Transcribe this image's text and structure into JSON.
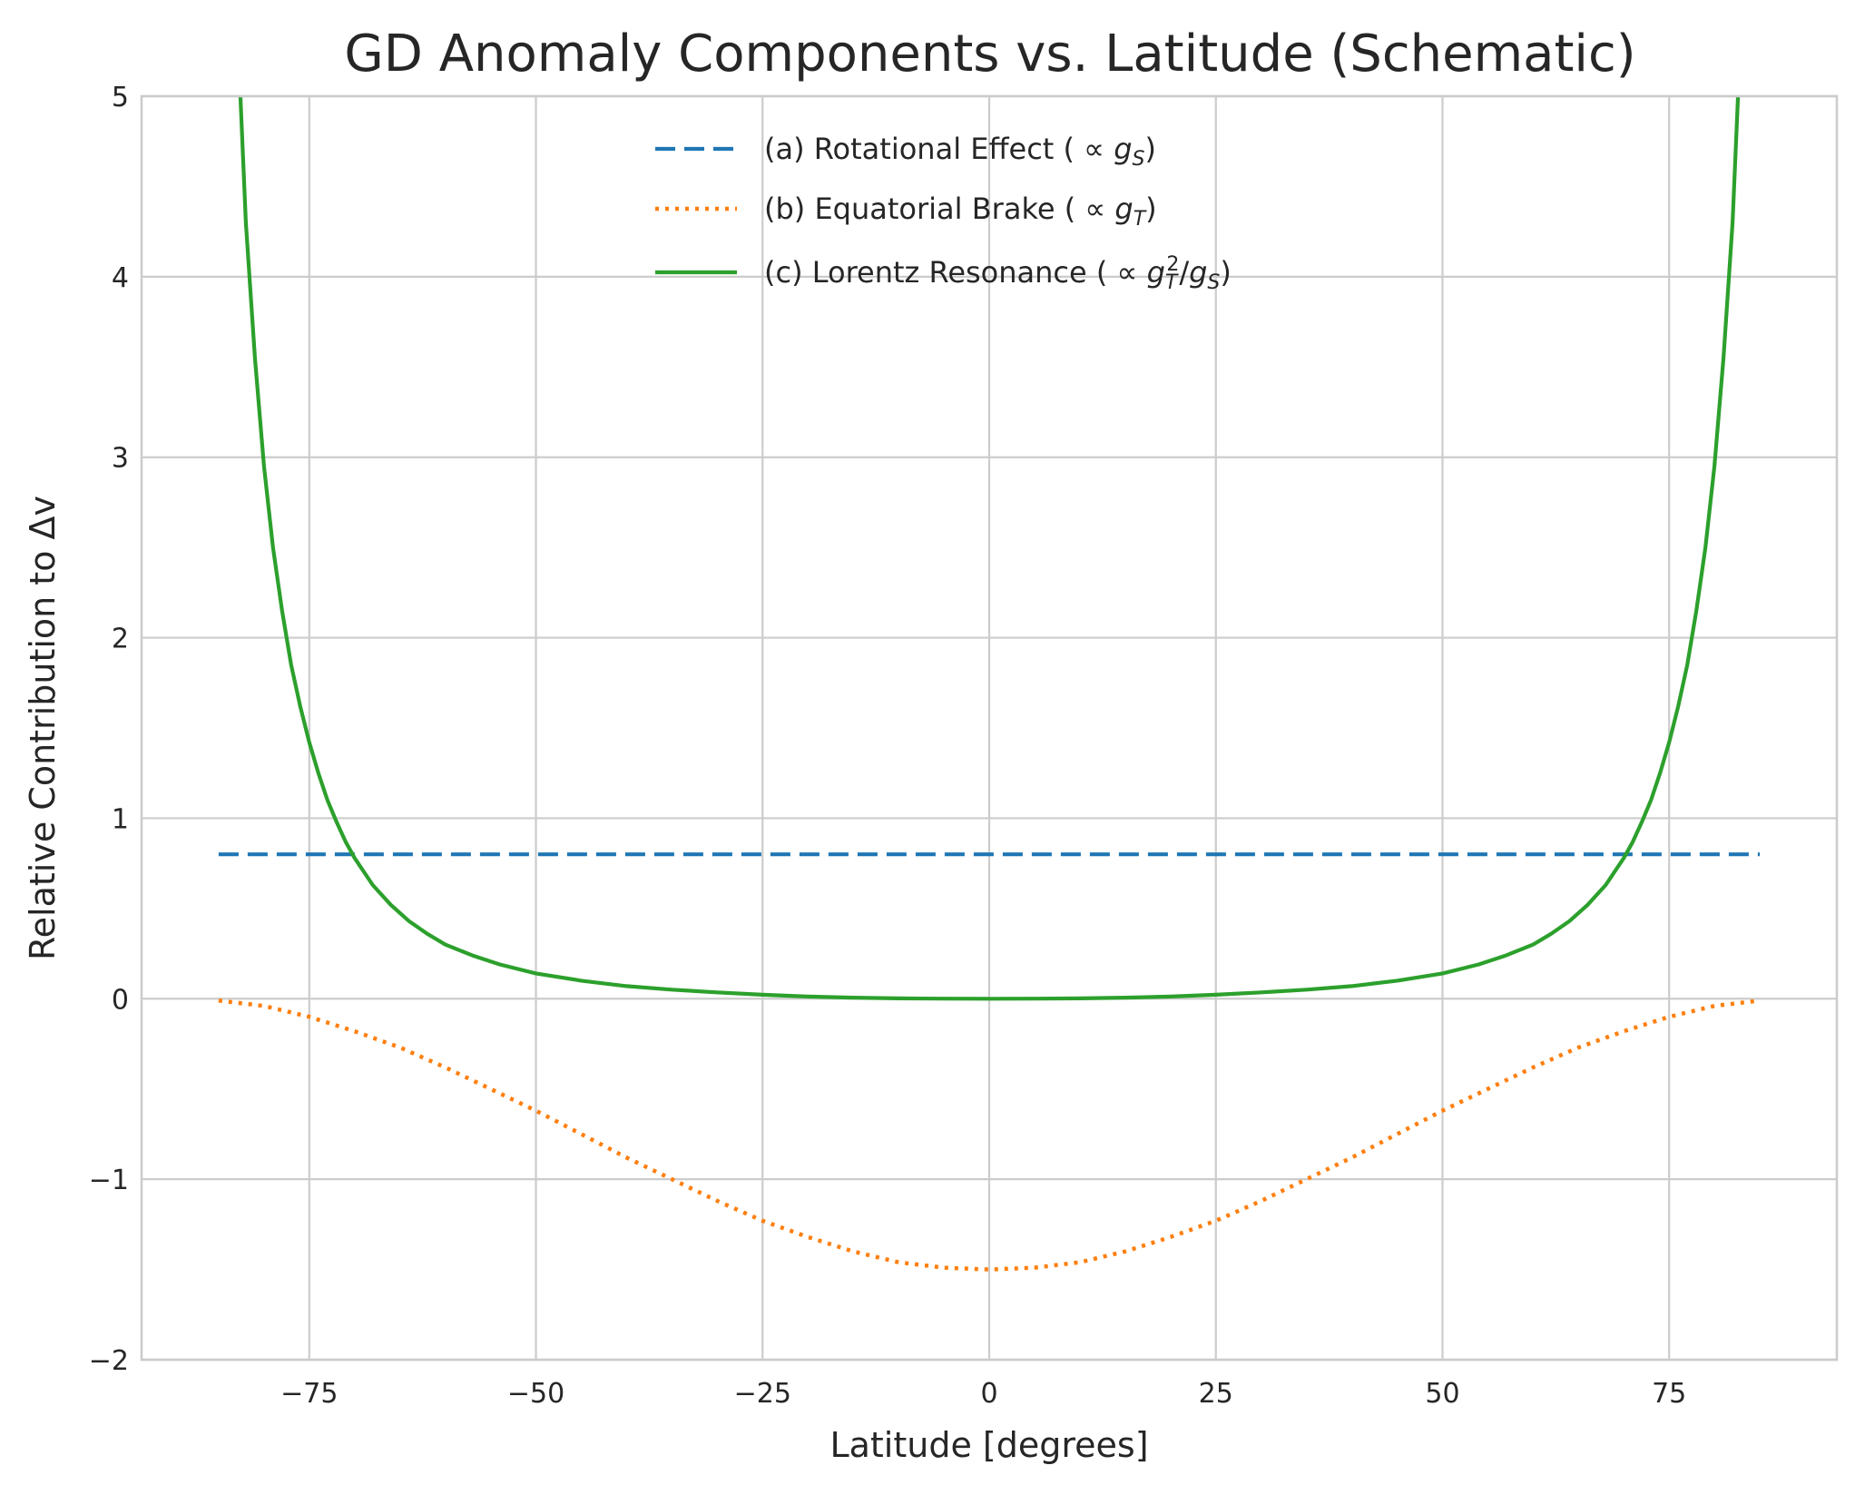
{
  "chart_data": {
    "type": "line",
    "title": "GD Anomaly Components vs. Latitude (Schematic)",
    "xlabel": "Latitude [degrees]",
    "ylabel": "Relative Contribution to Δv",
    "xlim": [
      -93.5,
      93.5
    ],
    "ylim": [
      -2,
      5
    ],
    "xticks": [
      -75,
      -50,
      -25,
      0,
      25,
      50,
      75
    ],
    "yticks": [
      -2,
      -1,
      0,
      1,
      2,
      3,
      4,
      5
    ],
    "xtick_labels": [
      "−75",
      "−50",
      "−25",
      "0",
      "25",
      "50",
      "75"
    ],
    "ytick_labels": [
      "−2",
      "−1",
      "0",
      "1",
      "2",
      "3",
      "4",
      "5"
    ],
    "grid": true,
    "legend_position": "upper-center",
    "series": [
      {
        "name": "(a) Rotational Effect ( ∝ g_S)",
        "legend_parts": [
          "(a) Rotational Effect ( ∝ ",
          "g",
          "S",
          ")"
        ],
        "color": "#1f77b4",
        "style": "dashed",
        "x": [
          -85,
          85
        ],
        "y": [
          0.8,
          0.8
        ]
      },
      {
        "name": "(b) Equatorial Brake ( ∝ g_T)",
        "legend_parts": [
          "(b) Equatorial Brake ( ∝ ",
          "g",
          "T",
          ")"
        ],
        "color": "#ff7f0e",
        "style": "dotted",
        "x": [
          -85,
          -80,
          -75,
          -70,
          -65,
          -60,
          -55,
          -50,
          -45,
          -40,
          -35,
          -30,
          -25,
          -20,
          -15,
          -10,
          -5,
          0,
          5,
          10,
          15,
          20,
          25,
          30,
          35,
          40,
          45,
          50,
          55,
          60,
          65,
          70,
          75,
          80,
          85
        ],
        "y": [
          -0.01,
          -0.04,
          -0.1,
          -0.18,
          -0.27,
          -0.38,
          -0.5,
          -0.62,
          -0.75,
          -0.88,
          -1.0,
          -1.12,
          -1.23,
          -1.32,
          -1.4,
          -1.46,
          -1.49,
          -1.5,
          -1.49,
          -1.46,
          -1.4,
          -1.32,
          -1.23,
          -1.12,
          -1.0,
          -0.88,
          -0.75,
          -0.62,
          -0.5,
          -0.38,
          -0.27,
          -0.18,
          -0.1,
          -0.04,
          -0.01
        ]
      },
      {
        "name": "(c) Lorentz Resonance ( ∝ g_T²/g_S)",
        "legend_parts": [
          "(c) Lorentz Resonance ( ∝ ",
          "g",
          "T",
          "2",
          "/",
          "g",
          "S",
          ")"
        ],
        "color": "#2ca02c",
        "style": "solid",
        "x": [
          -82.6,
          -82,
          -81,
          -80,
          -79,
          -78,
          -77,
          -76,
          -75,
          -74,
          -73,
          -72,
          -71,
          -70,
          -68,
          -66,
          -64,
          -62,
          -60,
          -57,
          -54,
          -50,
          -45,
          -40,
          -35,
          -30,
          -25,
          -20,
          -15,
          -10,
          -5,
          0,
          5,
          10,
          15,
          20,
          25,
          30,
          35,
          40,
          45,
          50,
          54,
          57,
          60,
          62,
          64,
          66,
          68,
          70,
          71,
          72,
          73,
          74,
          75,
          76,
          77,
          78,
          79,
          80,
          81,
          82,
          82.6
        ],
        "y": [
          5.0,
          4.3,
          3.55,
          2.95,
          2.5,
          2.15,
          1.85,
          1.62,
          1.42,
          1.25,
          1.1,
          0.98,
          0.87,
          0.78,
          0.63,
          0.52,
          0.43,
          0.36,
          0.3,
          0.24,
          0.19,
          0.14,
          0.1,
          0.07,
          0.05,
          0.035,
          0.022,
          0.012,
          0.006,
          0.002,
          0.0005,
          0.0,
          0.0005,
          0.002,
          0.006,
          0.012,
          0.022,
          0.035,
          0.05,
          0.07,
          0.1,
          0.14,
          0.19,
          0.24,
          0.3,
          0.36,
          0.43,
          0.52,
          0.63,
          0.78,
          0.87,
          0.98,
          1.1,
          1.25,
          1.42,
          1.62,
          1.85,
          2.15,
          2.5,
          2.95,
          3.55,
          4.3,
          5.0
        ]
      }
    ]
  }
}
